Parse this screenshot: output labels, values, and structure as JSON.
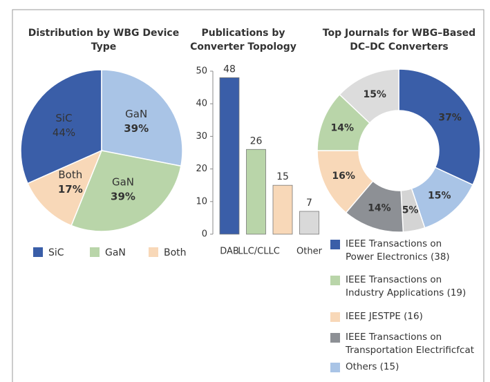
{
  "chart_data": [
    {
      "type": "pie",
      "title": "Distribution by WBG Device Type",
      "categories": [
        "SiC",
        "GaN",
        "GaN",
        "Both"
      ],
      "values": [
        44,
        39,
        39,
        17
      ],
      "value_labels": [
        "44%",
        "39%",
        "39%",
        "17%"
      ],
      "colors": [
        "#3a5ea8",
        "#a9c4e6",
        "#b9d5a9",
        "#f8d8b8"
      ],
      "legend": {
        "names": [
          "SiC",
          "GaN",
          "Both"
        ],
        "colors": [
          "#3a5ea8",
          "#b9d5a9",
          "#f8d8b8"
        ]
      }
    },
    {
      "type": "bar",
      "title": "Publications by Converter Topology",
      "categories": [
        "DAB",
        "LLC/CLLC",
        null,
        "Other"
      ],
      "values": [
        48,
        26,
        15,
        7
      ],
      "colors": [
        "#3a5ea8",
        "#b9d5a9",
        "#f8d8b8",
        "#d9d9d9"
      ],
      "ylim": [
        0,
        50
      ],
      "yticks": [
        0,
        10,
        20,
        30,
        40,
        50
      ]
    },
    {
      "type": "donut",
      "title": "Top Journals for WBG–Based DC–DC Converters",
      "values": [
        37,
        15,
        5,
        14,
        16,
        14,
        15
      ],
      "value_labels": [
        "37%",
        "15%",
        "5%",
        "14%",
        "16%",
        "14%",
        "15%"
      ],
      "colors": [
        "#3a5ea8",
        "#a9c4e6",
        "#d4d4d4",
        "#8d9095",
        "#f8d8b8",
        "#b9d5a9",
        "#dcdcdc"
      ],
      "legend": {
        "names": [
          [
            "IEEE Transactions on",
            "Power Electronics (38)"
          ],
          [
            "IEEE Transactions on",
            "Industry Applications (19)"
          ],
          [
            "IEEE JESTPE (16)"
          ],
          [
            "IEEE Transactions on",
            "Transportation Electrificfcat"
          ],
          [
            "Others (15)"
          ]
        ],
        "colors": [
          "#3a5ea8",
          "#b9d5a9",
          "#f8d8b8",
          "#8d9095",
          "#a9c4e6"
        ]
      }
    }
  ]
}
